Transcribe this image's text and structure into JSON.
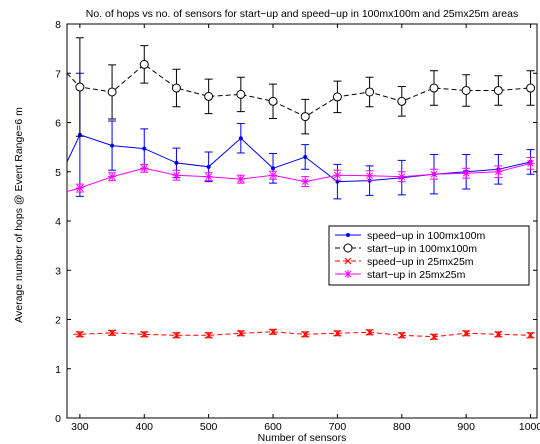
{
  "chart_data": {
    "type": "line",
    "title": "No. of hops vs no. of sensors for start−up and speed−up in 100mx100m and 25mx25m areas",
    "xlabel": "Number of sensors",
    "ylabel": "Average number of hops @ Event Range=6 m",
    "xlim": [
      280,
      1010
    ],
    "ylim": [
      0,
      8
    ],
    "xticks": [
      "300",
      "400",
      "500",
      "600",
      "700",
      "800",
      "900",
      "1000"
    ],
    "yticks": [
      "0",
      "1",
      "2",
      "3",
      "4",
      "5",
      "6",
      "7",
      "8"
    ],
    "grid": false,
    "legend_position": "center-right",
    "x": [
      300,
      350,
      400,
      450,
      500,
      550,
      600,
      650,
      700,
      750,
      800,
      850,
      900,
      950,
      1000
    ],
    "series": [
      {
        "name": "speed−up in 100mx100m",
        "color": "#0000ff",
        "line": "solid",
        "marker": "dot",
        "x": [
          280,
          300,
          350,
          400,
          450,
          500,
          550,
          600,
          650,
          700,
          750,
          800,
          850,
          900,
          950,
          1000
        ],
        "values": [
          5.2,
          5.75,
          5.53,
          5.47,
          5.18,
          5.1,
          5.68,
          5.07,
          5.3,
          4.8,
          4.82,
          4.88,
          4.95,
          5.0,
          5.05,
          5.2
        ],
        "errors": [
          0,
          1.25,
          0.5,
          0.4,
          0.3,
          0.3,
          0.3,
          0.3,
          0.25,
          0.35,
          0.3,
          0.35,
          0.4,
          0.35,
          0.3,
          0.25
        ]
      },
      {
        "name": "start−up in 100mx100m",
        "color": "#000000",
        "line": "dashed",
        "marker": "circle",
        "x": [
          280,
          300,
          350,
          400,
          450,
          500,
          550,
          600,
          650,
          700,
          750,
          800,
          850,
          900,
          950,
          1000
        ],
        "values": [
          7.0,
          6.72,
          6.62,
          7.18,
          6.7,
          6.53,
          6.57,
          6.43,
          6.12,
          6.52,
          6.62,
          6.43,
          6.7,
          6.65,
          6.65,
          6.7
        ],
        "errors": [
          0,
          1.0,
          0.55,
          0.38,
          0.38,
          0.35,
          0.35,
          0.35,
          0.35,
          0.32,
          0.3,
          0.3,
          0.35,
          0.32,
          0.3,
          0.35
        ]
      },
      {
        "name": "speed−up in 25mx25m",
        "color": "#ff0000",
        "line": "dashed",
        "marker": "x",
        "x": [
          290,
          300,
          350,
          400,
          450,
          500,
          550,
          600,
          650,
          700,
          750,
          800,
          850,
          900,
          950,
          1000
        ],
        "values": [
          1.7,
          1.7,
          1.73,
          1.7,
          1.68,
          1.68,
          1.72,
          1.75,
          1.7,
          1.72,
          1.74,
          1.68,
          1.65,
          1.72,
          1.7,
          1.68
        ],
        "errors": [
          0,
          0.05,
          0.05,
          0.05,
          0.05,
          0.05,
          0.05,
          0.05,
          0.05,
          0.05,
          0.05,
          0.05,
          0.05,
          0.05,
          0.05,
          0.05
        ]
      },
      {
        "name": "start−up in 25mx25m",
        "color": "#ff00ff",
        "line": "solid",
        "marker": "asterisk",
        "x": [
          280,
          300,
          350,
          400,
          450,
          500,
          550,
          600,
          650,
          700,
          750,
          800,
          850,
          900,
          950,
          1000
        ],
        "values": [
          4.6,
          4.67,
          4.9,
          5.07,
          4.93,
          4.9,
          4.85,
          4.93,
          4.8,
          4.93,
          4.92,
          4.9,
          4.95,
          4.97,
          5.0,
          5.17
        ],
        "errors": [
          0,
          0.08,
          0.08,
          0.08,
          0.1,
          0.08,
          0.08,
          0.08,
          0.1,
          0.1,
          0.1,
          0.1,
          0.1,
          0.1,
          0.12,
          0.12
        ]
      }
    ]
  }
}
